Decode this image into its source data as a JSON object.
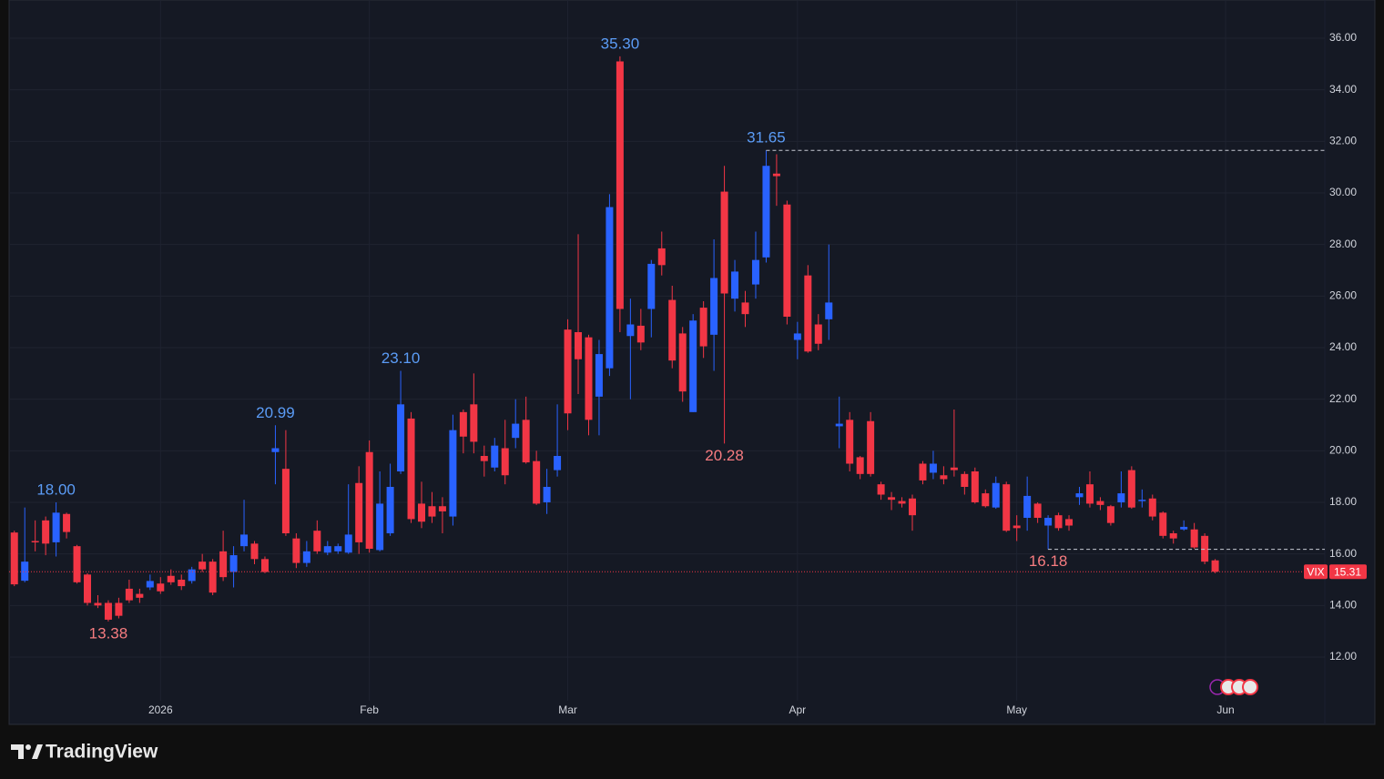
{
  "chart_data": {
    "type": "candlestick",
    "symbol": "VIX",
    "brand": "TradingView",
    "up_color": "#2962ff",
    "down_color": "#f23645",
    "grid": true,
    "xlim": [
      -0.5,
      125.5
    ],
    "ylim": [
      10.306,
      37.482
    ],
    "xticks": [
      {
        "value": 14,
        "label": "2026"
      },
      {
        "value": 34,
        "label": "Feb"
      },
      {
        "value": 53,
        "label": "Mar"
      },
      {
        "value": 75,
        "label": "Apr"
      },
      {
        "value": 96,
        "label": "May"
      },
      {
        "value": 116,
        "label": "Jun"
      }
    ],
    "yticks": [
      {
        "value": 12,
        "label": "12.00"
      },
      {
        "value": 14,
        "label": "14.00"
      },
      {
        "value": 16,
        "label": "16.00"
      },
      {
        "value": 18,
        "label": "18.00"
      },
      {
        "value": 20,
        "label": "20.00"
      },
      {
        "value": 22,
        "label": "22.00"
      },
      {
        "value": 24,
        "label": "24.00"
      },
      {
        "value": 26,
        "label": "26.00"
      },
      {
        "value": 28,
        "label": "28.00"
      },
      {
        "value": 30,
        "label": "30.00"
      },
      {
        "value": 32,
        "label": "32.00"
      },
      {
        "value": 34,
        "label": "34.00"
      },
      {
        "value": 36,
        "label": "36.00"
      }
    ],
    "open": [
      16.83,
      14.96,
      16.5,
      17.3,
      16.45,
      17.55,
      16.3,
      15.2,
      14.1,
      14.1,
      14.1,
      14.65,
      14.45,
      14.7,
      14.85,
      15.15,
      15.0,
      14.95,
      15.7,
      15.7,
      16.1,
      15.3,
      16.3,
      16.4,
      15.8,
      19.95,
      19.3,
      16.6,
      15.65,
      16.9,
      16.05,
      16.1,
      16.05,
      18.75,
      19.95,
      16.15,
      16.8,
      19.2,
      21.25,
      17.95,
      17.85,
      17.85,
      17.45,
      21.5,
      21.8,
      19.8,
      19.35,
      20.1,
      20.5,
      21.2,
      19.6,
      18.0,
      19.25,
      24.7,
      24.6,
      24.4,
      22.1,
      23.2,
      35.1,
      24.45,
      24.85,
      25.5,
      27.85,
      25.85,
      24.55,
      21.5,
      25.55,
      24.5,
      30.05,
      25.9,
      25.75,
      26.45,
      27.5,
      30.75,
      29.55,
      24.3,
      26.8,
      24.9,
      25.1,
      20.95,
      21.2,
      19.75,
      21.15,
      18.7,
      18.2,
      18.05,
      18.15,
      19.5,
      19.15,
      19.05,
      19.35,
      19.1,
      19.2,
      18.35,
      17.8,
      18.7,
      17.1,
      17.4,
      17.95,
      17.1,
      17.5,
      17.35,
      18.2,
      18.7,
      18.05,
      17.85,
      18.0,
      19.25,
      18.05,
      18.15,
      17.6,
      16.8,
      16.95,
      16.95,
      16.7,
      15.75
    ],
    "high": [
      16.9,
      17.8,
      17.3,
      17.45,
      18.0,
      17.6,
      16.35,
      15.25,
      14.4,
      14.2,
      14.3,
      15.0,
      14.65,
      15.2,
      15.1,
      15.4,
      15.2,
      15.5,
      16.0,
      15.8,
      16.9,
      16.3,
      18.1,
      16.5,
      15.9,
      20.99,
      20.8,
      16.8,
      16.5,
      17.3,
      16.5,
      16.4,
      18.7,
      19.4,
      20.4,
      19.2,
      19.5,
      23.1,
      21.5,
      18.8,
      18.4,
      18.2,
      21.4,
      21.6,
      23.0,
      20.2,
      20.5,
      21.2,
      22.0,
      22.1,
      20.0,
      19.3,
      21.8,
      25.1,
      28.4,
      24.5,
      24.3,
      29.95,
      35.3,
      25.9,
      25.5,
      27.4,
      28.5,
      26.4,
      24.8,
      25.3,
      25.8,
      28.2,
      31.05,
      27.4,
      26.2,
      28.5,
      31.65,
      31.5,
      29.7,
      25.0,
      27.2,
      25.3,
      28.0,
      22.1,
      21.5,
      19.8,
      21.5,
      18.8,
      18.4,
      18.2,
      18.3,
      19.6,
      20.0,
      19.4,
      21.6,
      19.2,
      19.35,
      18.5,
      19.0,
      18.8,
      17.5,
      19.0,
      18.0,
      17.5,
      17.6,
      17.5,
      18.6,
      19.2,
      18.2,
      17.9,
      19.2,
      19.4,
      18.5,
      18.3,
      17.65,
      16.9,
      17.3,
      17.2,
      16.8,
      15.8
    ],
    "low": [
      14.75,
      14.9,
      16.1,
      15.95,
      15.9,
      16.6,
      14.85,
      14.0,
      13.9,
      13.38,
      13.5,
      14.1,
      14.1,
      14.6,
      14.45,
      14.8,
      14.6,
      14.85,
      15.3,
      14.4,
      14.95,
      14.7,
      16.1,
      15.6,
      15.25,
      18.7,
      16.7,
      15.45,
      15.5,
      16.0,
      15.95,
      16.0,
      16.0,
      16.0,
      16.05,
      16.1,
      16.7,
      19.1,
      17.2,
      17.0,
      17.2,
      16.8,
      17.1,
      19.9,
      19.9,
      19.0,
      19.2,
      18.7,
      20.1,
      19.5,
      17.9,
      17.55,
      19.0,
      20.8,
      22.2,
      20.6,
      20.6,
      22.9,
      24.6,
      22.0,
      23.9,
      24.4,
      26.8,
      23.2,
      21.9,
      21.5,
      23.6,
      23.1,
      20.28,
      25.4,
      24.8,
      25.9,
      27.3,
      29.5,
      24.9,
      23.55,
      23.8,
      23.9,
      24.3,
      20.1,
      19.2,
      18.9,
      19.0,
      18.1,
      17.7,
      17.8,
      16.9,
      18.7,
      18.9,
      18.7,
      19.0,
      18.3,
      17.95,
      17.8,
      17.75,
      16.85,
      16.5,
      16.9,
      17.2,
      16.18,
      16.9,
      16.9,
      17.9,
      17.8,
      17.7,
      17.1,
      17.8,
      17.75,
      17.8,
      17.3,
      16.6,
      16.4,
      16.9,
      16.2,
      15.6,
      15.25
    ],
    "close": [
      14.82,
      15.7,
      16.45,
      16.4,
      17.6,
      16.85,
      14.9,
      14.1,
      14.0,
      13.45,
      13.6,
      14.2,
      14.3,
      14.95,
      14.55,
      14.9,
      14.75,
      15.4,
      15.4,
      14.5,
      15.1,
      15.95,
      16.75,
      15.8,
      15.3,
      20.1,
      16.8,
      15.65,
      16.1,
      16.1,
      16.3,
      16.3,
      16.75,
      16.45,
      16.2,
      17.95,
      18.6,
      21.8,
      17.35,
      17.25,
      17.45,
      17.65,
      20.8,
      20.55,
      20.35,
      19.6,
      20.2,
      19.05,
      21.05,
      19.55,
      17.95,
      18.6,
      19.8,
      21.45,
      23.55,
      21.2,
      23.75,
      29.45,
      25.5,
      24.9,
      24.2,
      27.25,
      27.2,
      23.5,
      22.3,
      25.05,
      24.05,
      26.7,
      26.1,
      26.95,
      25.3,
      27.4,
      31.05,
      30.65,
      25.2,
      24.55,
      23.85,
      24.15,
      25.75,
      21.05,
      19.5,
      19.1,
      19.1,
      18.3,
      18.1,
      17.95,
      17.5,
      18.85,
      19.5,
      18.9,
      19.25,
      18.6,
      18.0,
      17.85,
      18.75,
      16.9,
      17.0,
      18.25,
      17.4,
      17.4,
      17.0,
      17.1,
      18.35,
      17.95,
      17.9,
      17.2,
      18.35,
      17.8,
      18.1,
      17.45,
      16.7,
      16.6,
      17.05,
      16.25,
      15.7,
      15.31
    ],
    "annotations": [
      {
        "x": 4,
        "value": 18,
        "label": "18.00"
      },
      {
        "x": 9,
        "value": 13.38,
        "label": "13.38"
      },
      {
        "x": 25,
        "value": 20.99,
        "label": "20.99"
      },
      {
        "x": 37,
        "value": 23.1,
        "label": "23.10"
      },
      {
        "x": 58,
        "value": 35.3,
        "label": "35.30"
      },
      {
        "x": 72,
        "value": 31.65,
        "label": "31.65",
        "extend": true
      },
      {
        "x": 68,
        "value": 20.28,
        "label": "20.28"
      },
      {
        "x": 99,
        "value": 16.18,
        "label": "16.18",
        "extend": true
      }
    ],
    "last_price": 15.31
  }
}
